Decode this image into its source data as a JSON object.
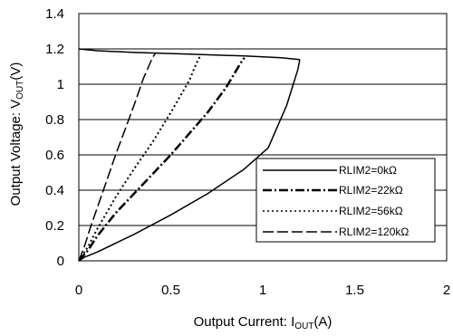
{
  "chart_data": {
    "type": "line",
    "xlabel": "Output Current: I",
    "xlabel_sub": "OUT",
    "xlabel_unit": "(A)",
    "ylabel": "Output Voltage: V",
    "ylabel_sub": "OUT",
    "ylabel_unit": "(V)",
    "xlim": [
      0,
      2
    ],
    "ylim": [
      0,
      1.4
    ],
    "xticks": [
      "0",
      "0.5",
      "1",
      "1.5",
      "2"
    ],
    "yticks": [
      "0",
      "0.2",
      "0.4",
      "0.6",
      "0.8",
      "1",
      "1.2",
      "1.4"
    ],
    "grid": "horizontal",
    "legend_position": "bottom-right",
    "series": [
      {
        "name": "RLIM2=0kΩ",
        "style": "solid",
        "x": [
          0,
          0.1,
          0.3,
          0.6,
          0.9,
          1.0,
          1.1,
          1.2,
          1.2,
          1.19,
          1.16,
          1.13,
          1.08,
          1.03,
          0.9,
          0.7,
          0.5,
          0.3,
          0.1,
          0.03,
          0.0
        ],
        "y": [
          1.2,
          1.19,
          1.18,
          1.17,
          1.16,
          1.155,
          1.15,
          1.14,
          1.13,
          1.08,
          0.98,
          0.88,
          0.76,
          0.64,
          0.52,
          0.38,
          0.26,
          0.15,
          0.05,
          0.02,
          0.0
        ]
      },
      {
        "name": "RLIM2=22kΩ",
        "style": "dash-dot",
        "x": [
          0.0,
          0.05,
          0.1,
          0.2,
          0.3,
          0.4,
          0.5,
          0.6,
          0.7,
          0.8,
          0.88,
          0.9
        ],
        "y": [
          0.0,
          0.06,
          0.14,
          0.27,
          0.38,
          0.49,
          0.6,
          0.72,
          0.84,
          0.98,
          1.12,
          1.15
        ]
      },
      {
        "name": "RLIM2=56kΩ",
        "style": "dotted",
        "x": [
          0.0,
          0.05,
          0.1,
          0.15,
          0.2,
          0.3,
          0.4,
          0.5,
          0.6,
          0.64,
          0.66
        ],
        "y": [
          0.0,
          0.08,
          0.18,
          0.27,
          0.36,
          0.52,
          0.67,
          0.84,
          1.02,
          1.12,
          1.16
        ]
      },
      {
        "name": "RLIM2=120kΩ",
        "style": "dashed",
        "x": [
          0.0,
          0.03,
          0.06,
          0.1,
          0.15,
          0.2,
          0.25,
          0.3,
          0.35,
          0.4,
          0.42
        ],
        "y": [
          0.0,
          0.08,
          0.18,
          0.3,
          0.45,
          0.6,
          0.74,
          0.88,
          1.03,
          1.15,
          1.18
        ]
      }
    ]
  }
}
